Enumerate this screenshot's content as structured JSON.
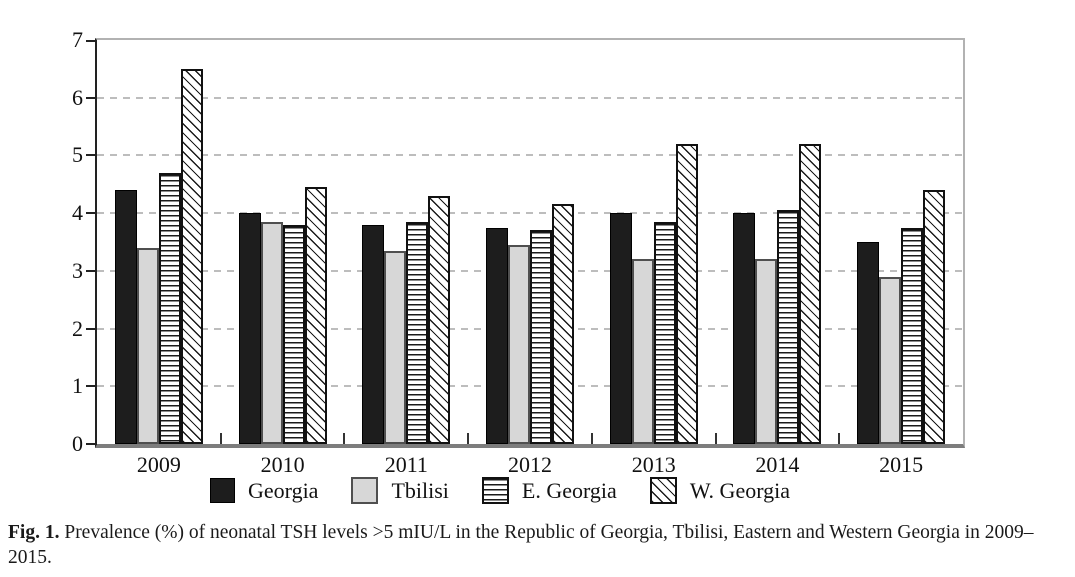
{
  "figure": {
    "caption": {
      "label": "Fig. 1.",
      "line1": "Prevalence (%) of neonatal TSH levels >5 mIU/L in the Republic of Georgia, Tbilisi, Eastern and Western Georgia in 2009–",
      "line2": "2015."
    }
  },
  "chart_data": {
    "type": "bar",
    "title": "",
    "xlabel": "",
    "ylabel": "",
    "categories": [
      "2009",
      "2010",
      "2011",
      "2012",
      "2013",
      "2014",
      "2015"
    ],
    "series": [
      {
        "name": "Georgia",
        "style": "solid-black",
        "values": [
          4.4,
          4.0,
          3.8,
          3.75,
          4.0,
          4.0,
          3.5
        ]
      },
      {
        "name": "Tbilisi",
        "style": "solid-gray",
        "values": [
          3.4,
          3.85,
          3.35,
          3.45,
          3.2,
          3.2,
          2.9
        ]
      },
      {
        "name": "E. Georgia",
        "style": "hatch-horizontal",
        "values": [
          4.7,
          3.8,
          3.85,
          3.7,
          3.85,
          4.05,
          3.75
        ]
      },
      {
        "name": "W. Georgia",
        "style": "hatch-diagonal",
        "values": [
          6.5,
          4.45,
          4.3,
          4.15,
          5.2,
          5.2,
          4.4
        ]
      }
    ],
    "ylim": [
      0,
      7
    ],
    "yticks": [
      0,
      1,
      2,
      3,
      4,
      5,
      6,
      7
    ],
    "grid": "horizontal-dashed",
    "legend_position": "bottom-center",
    "colors": {
      "bar_black": "#1d1d1d",
      "bar_gray": "#d7d7d7",
      "hatch_line": "#1a1a1a",
      "gridline": "#bdbdbd",
      "axis_dark": "#222222",
      "axis_bottom": "#7d7d7d",
      "frame_light": "#b2b2b2"
    }
  }
}
